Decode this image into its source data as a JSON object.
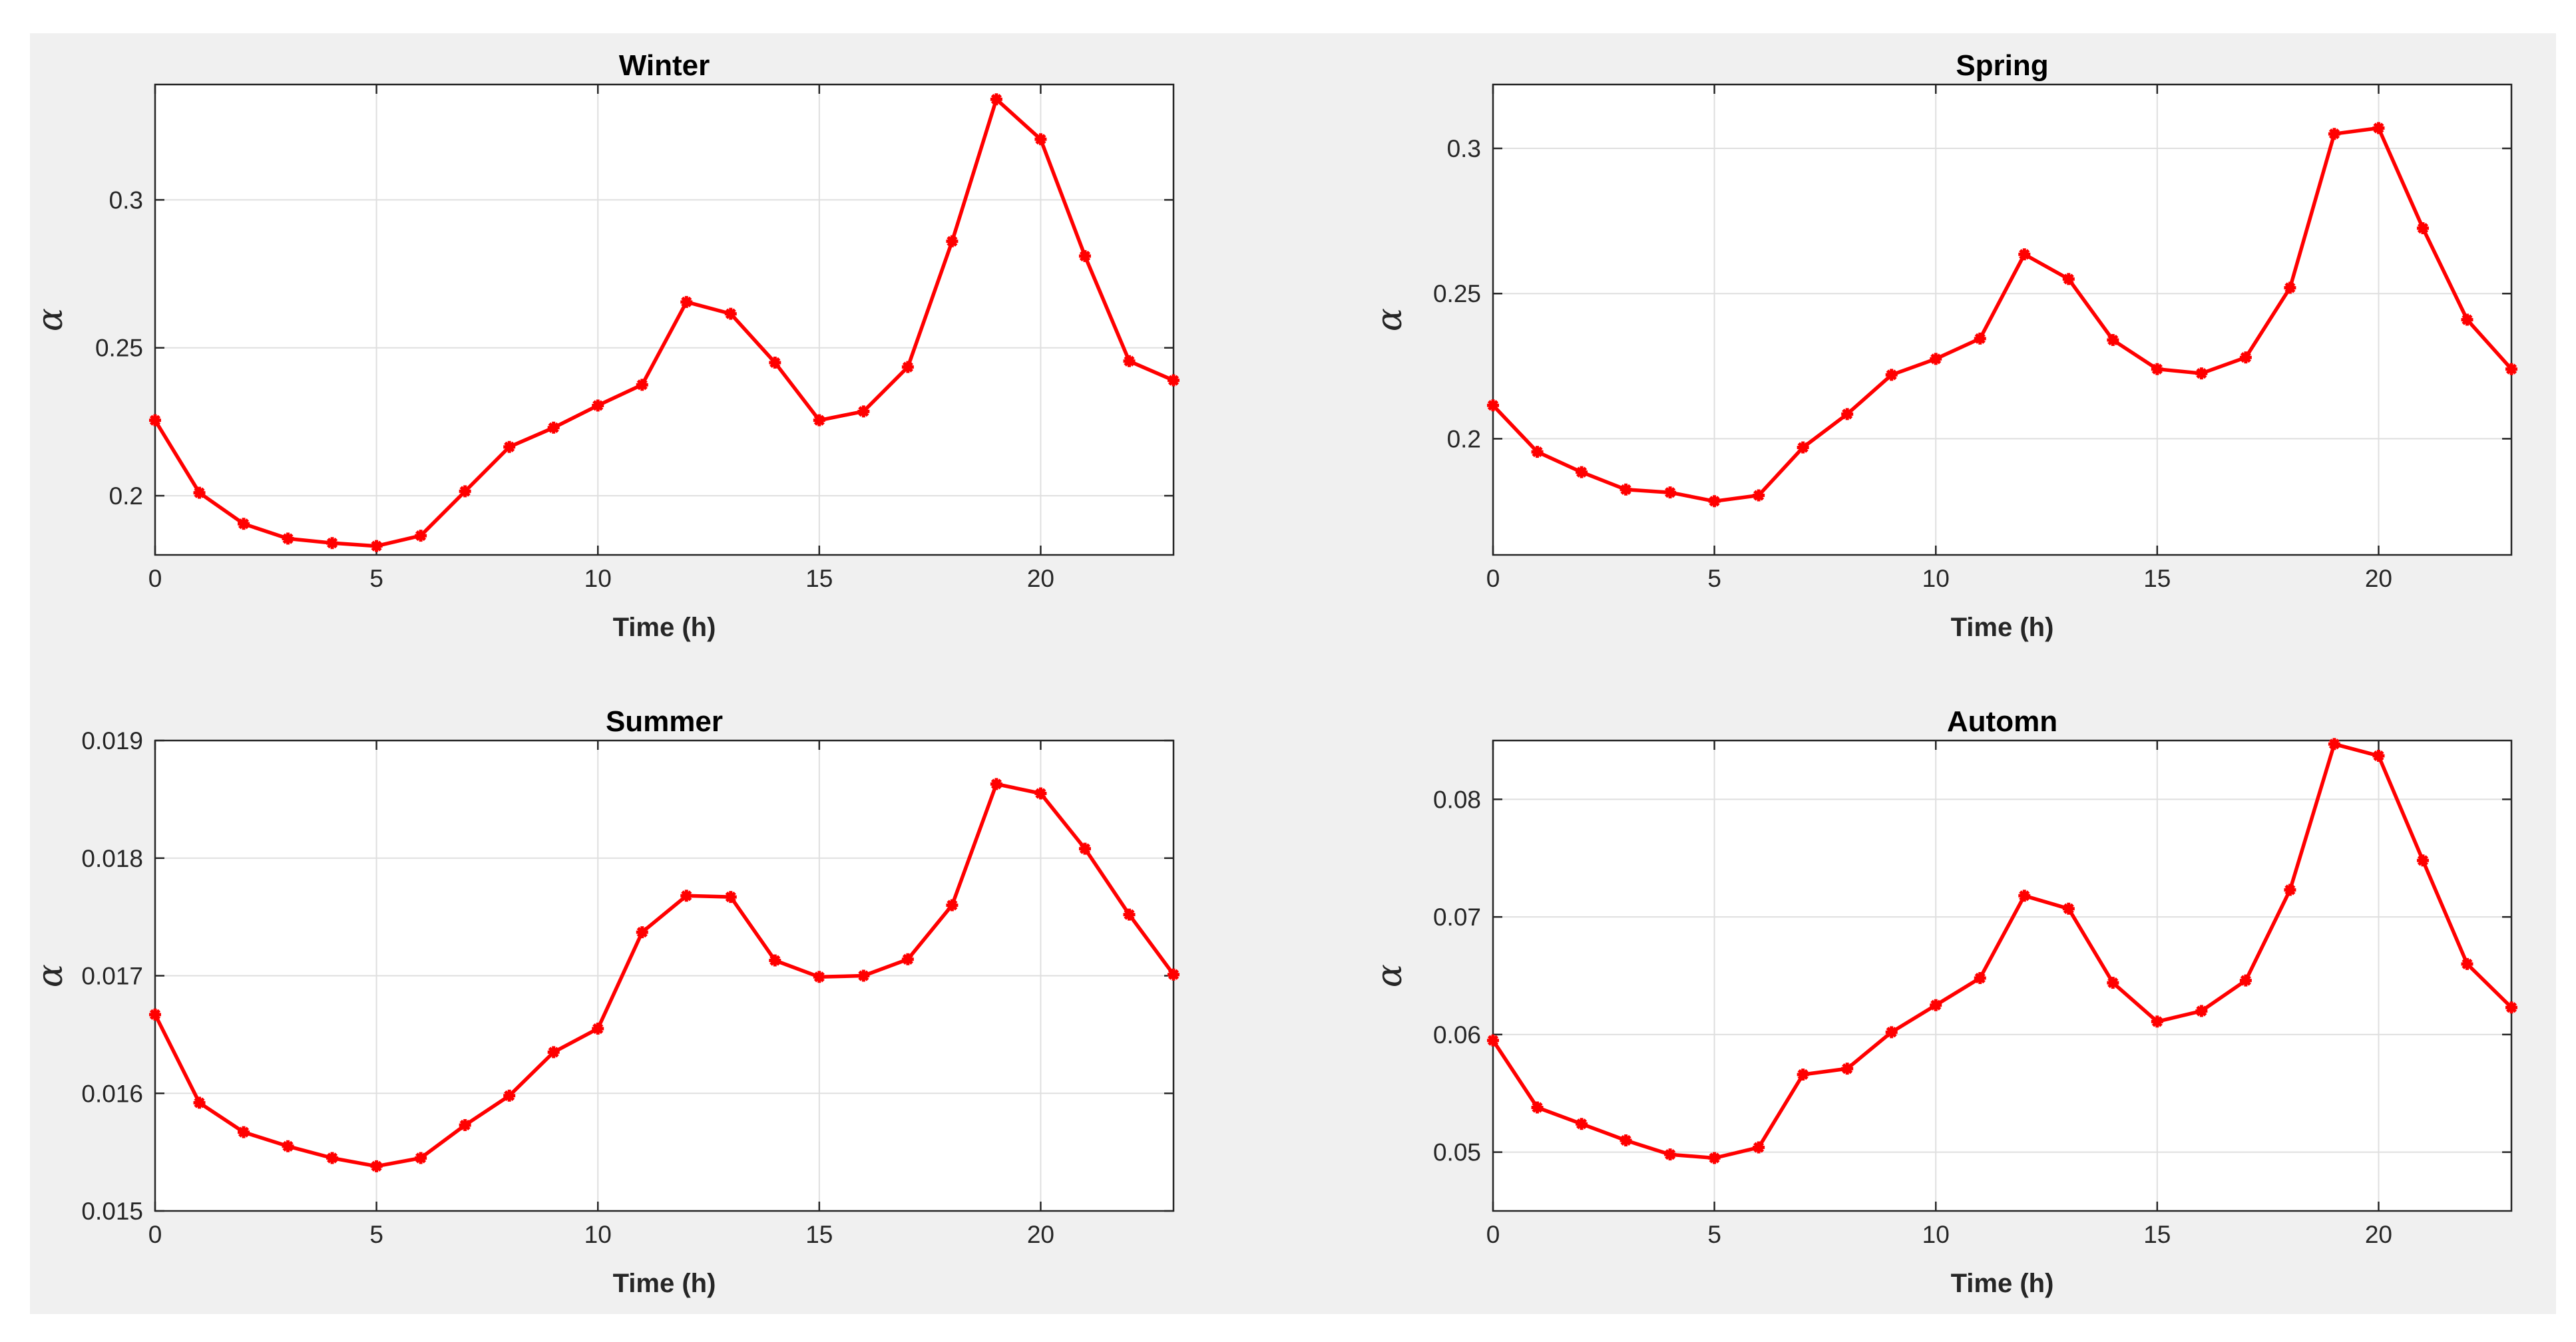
{
  "chart_data": [
    {
      "type": "line",
      "title": "Winter",
      "xlabel": "Time (h)",
      "ylabel": "α",
      "xlim": [
        0,
        23
      ],
      "ylim": [
        0.18,
        0.339
      ],
      "xticks": [
        0,
        5,
        10,
        15,
        20
      ],
      "xtick_labels": [
        "0",
        "5",
        "10",
        "15",
        "20"
      ],
      "yticks": [
        0.2,
        0.25,
        0.3
      ],
      "ytick_labels": [
        "0.2",
        "0.25",
        "0.3"
      ],
      "grid": true,
      "color": "#ff0000",
      "x": [
        0,
        1,
        2,
        3,
        4,
        5,
        6,
        7,
        8,
        9,
        10,
        11,
        12,
        13,
        14,
        15,
        16,
        17,
        18,
        19,
        20,
        21,
        22,
        23
      ],
      "values": [
        0.2255,
        0.201,
        0.1905,
        0.1855,
        0.184,
        0.183,
        0.1865,
        0.2015,
        0.2165,
        0.223,
        0.2305,
        0.2375,
        0.2655,
        0.2615,
        0.245,
        0.2255,
        0.2285,
        0.2435,
        0.286,
        0.334,
        0.3205,
        0.281,
        0.2455,
        0.239
      ]
    },
    {
      "type": "line",
      "title": "Spring",
      "xlabel": "Time (h)",
      "ylabel": "α",
      "xlim": [
        0,
        23
      ],
      "ylim": [
        0.16,
        0.322
      ],
      "xticks": [
        0,
        5,
        10,
        15,
        20
      ],
      "xtick_labels": [
        "0",
        "5",
        "10",
        "15",
        "20"
      ],
      "yticks": [
        0.2,
        0.25,
        0.3
      ],
      "ytick_labels": [
        "0.2",
        "0.25",
        "0.3"
      ],
      "grid": true,
      "color": "#ff0000",
      "x": [
        0,
        1,
        2,
        3,
        4,
        5,
        6,
        7,
        8,
        9,
        10,
        11,
        12,
        13,
        14,
        15,
        16,
        17,
        18,
        19,
        20,
        21,
        22,
        23
      ],
      "values": [
        0.2115,
        0.1955,
        0.1885,
        0.1825,
        0.1815,
        0.1785,
        0.1805,
        0.197,
        0.2085,
        0.222,
        0.2275,
        0.2345,
        0.2635,
        0.255,
        0.234,
        0.224,
        0.2225,
        0.228,
        0.252,
        0.305,
        0.307,
        0.2725,
        0.241,
        0.224
      ]
    },
    {
      "type": "line",
      "title": "Summer",
      "xlabel": "Time (h)",
      "ylabel": "α",
      "xlim": [
        0,
        23
      ],
      "ylim": [
        0.015,
        0.019
      ],
      "xticks": [
        0,
        5,
        10,
        15,
        20
      ],
      "xtick_labels": [
        "0",
        "5",
        "10",
        "15",
        "20"
      ],
      "yticks": [
        0.015,
        0.016,
        0.017,
        0.018,
        0.019
      ],
      "ytick_labels": [
        "0.015",
        "0.016",
        "0.017",
        "0.018",
        "0.019"
      ],
      "grid": true,
      "color": "#ff0000",
      "x": [
        0,
        1,
        2,
        3,
        4,
        5,
        6,
        7,
        8,
        9,
        10,
        11,
        12,
        13,
        14,
        15,
        16,
        17,
        18,
        19,
        20,
        21,
        22,
        23
      ],
      "values": [
        0.01667,
        0.01592,
        0.01567,
        0.01555,
        0.01545,
        0.01538,
        0.01545,
        0.01573,
        0.01598,
        0.01635,
        0.01655,
        0.01737,
        0.01768,
        0.01767,
        0.01713,
        0.01699,
        0.017,
        0.01714,
        0.0176,
        0.01863,
        0.01855,
        0.01808,
        0.01752,
        0.01701
      ]
    },
    {
      "type": "line",
      "title": "Automn",
      "xlabel": "Time (h)",
      "ylabel": "α",
      "xlim": [
        0,
        23
      ],
      "ylim": [
        0.045,
        0.085
      ],
      "xticks": [
        0,
        5,
        10,
        15,
        20
      ],
      "xtick_labels": [
        "0",
        "5",
        "10",
        "15",
        "20"
      ],
      "yticks": [
        0.05,
        0.06,
        0.07,
        0.08
      ],
      "ytick_labels": [
        "0.05",
        "0.06",
        "0.07",
        "0.08"
      ],
      "grid": true,
      "color": "#ff0000",
      "x": [
        0,
        1,
        2,
        3,
        4,
        5,
        6,
        7,
        8,
        9,
        10,
        11,
        12,
        13,
        14,
        15,
        16,
        17,
        18,
        19,
        20,
        21,
        22,
        23
      ],
      "values": [
        0.0595,
        0.0538,
        0.0524,
        0.051,
        0.0498,
        0.0495,
        0.0504,
        0.0566,
        0.0571,
        0.0602,
        0.0625,
        0.0648,
        0.0718,
        0.0707,
        0.0644,
        0.0611,
        0.062,
        0.0646,
        0.0723,
        0.0847,
        0.0837,
        0.0748,
        0.066,
        0.0623
      ]
    }
  ]
}
